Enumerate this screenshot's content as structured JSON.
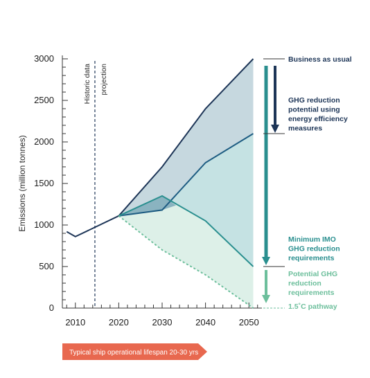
{
  "chart_data": {
    "type": "area",
    "ylabel": "Emissions (million tonnes)",
    "xlabel": "",
    "xlim": [
      2007,
      2053
    ],
    "ylim": [
      0,
      3000
    ],
    "x_ticks": [
      2010,
      2020,
      2030,
      2040,
      2050
    ],
    "y_ticks": [
      0,
      500,
      1000,
      1500,
      2000,
      2500,
      3000
    ],
    "grid": false,
    "historic": {
      "x": [
        2008,
        2010,
        2020
      ],
      "y": [
        920,
        860,
        1110
      ]
    },
    "series": [
      {
        "name": "Business as usual",
        "x": [
          2020,
          2030,
          2040,
          2051
        ],
        "y": [
          1110,
          1700,
          2400,
          3000
        ]
      },
      {
        "name": "",
        "x": [
          2020,
          2030,
          2040,
          2051
        ],
        "y": [
          1110,
          1180,
          1750,
          2100
        ]
      },
      {
        "name": "Minimum IMO GHG reduction requirements",
        "x": [
          2020,
          2030,
          2040,
          2051
        ],
        "y": [
          1110,
          1350,
          1050,
          500
        ]
      },
      {
        "name": "1.5˚C pathway",
        "x": [
          2020,
          2030,
          2040,
          2051
        ],
        "y": [
          1110,
          700,
          400,
          0
        ]
      }
    ],
    "divider": {
      "x": 2014.5,
      "label_left": "Historic data",
      "label_right": "projection"
    },
    "annotations": [
      "Business as usual",
      "GHG reduction potential using energy efficiency measures",
      "Minimum IMO GHG reduction requirements",
      "Potential GHG reduction requirements",
      "1.5˚C pathway"
    ]
  },
  "banner": {
    "text": "Typical ship operational lifespan 20-30 yrs"
  },
  "colors": {
    "navy": "#1d3557",
    "blue": "#1d5c82",
    "teal": "#2a8f8f",
    "mint": "#6dbf9c",
    "fill_bau": "#c6d8df",
    "fill_mid": "#c5e2e3",
    "fill_low": "#ddf0e8",
    "banner": "#e8684f"
  }
}
